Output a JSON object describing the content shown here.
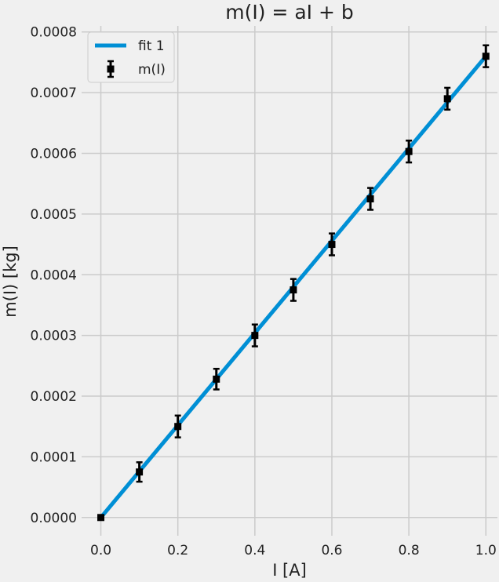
{
  "chart_data": {
    "type": "scatter",
    "title": "m(I) = aI + b",
    "xlabel": "I [A]",
    "ylabel": "m(I) [kg]",
    "xlim": [
      -0.05,
      1.03
    ],
    "ylim": [
      -3e-05,
      0.00081
    ],
    "xticks": [
      "0.0",
      "0.2",
      "0.4",
      "0.6",
      "0.8",
      "1.0"
    ],
    "xtick_values": [
      0.0,
      0.2,
      0.4,
      0.6,
      0.8,
      1.0
    ],
    "yticks": [
      "0.0000",
      "0.0001",
      "0.0002",
      "0.0003",
      "0.0004",
      "0.0005",
      "0.0006",
      "0.0007",
      "0.0008"
    ],
    "ytick_values": [
      0,
      0.0001,
      0.0002,
      0.0003,
      0.0004,
      0.0005,
      0.0006,
      0.0007,
      0.0008
    ],
    "grid": true,
    "legend_position": "top-left",
    "series": [
      {
        "name": "fit 1",
        "kind": "line",
        "color": "#008fd5",
        "x": [
          0.0,
          1.0
        ],
        "y": [
          0.0,
          0.00076
        ]
      },
      {
        "name": "m(I)",
        "kind": "errorbar",
        "color": "#000000",
        "x": [
          0.0,
          0.1,
          0.2,
          0.3,
          0.4,
          0.5,
          0.6,
          0.7,
          0.8,
          0.9,
          1.0
        ],
        "y": [
          0.0,
          7.5e-05,
          0.00015,
          0.000228,
          0.0003,
          0.000375,
          0.00045,
          0.000525,
          0.000603,
          0.00069,
          0.00076
        ],
        "yerr": [
          0.0,
          1.6e-05,
          1.8e-05,
          1.7e-05,
          1.8e-05,
          1.8e-05,
          1.8e-05,
          1.8e-05,
          1.8e-05,
          1.8e-05,
          1.8e-05
        ]
      }
    ]
  }
}
